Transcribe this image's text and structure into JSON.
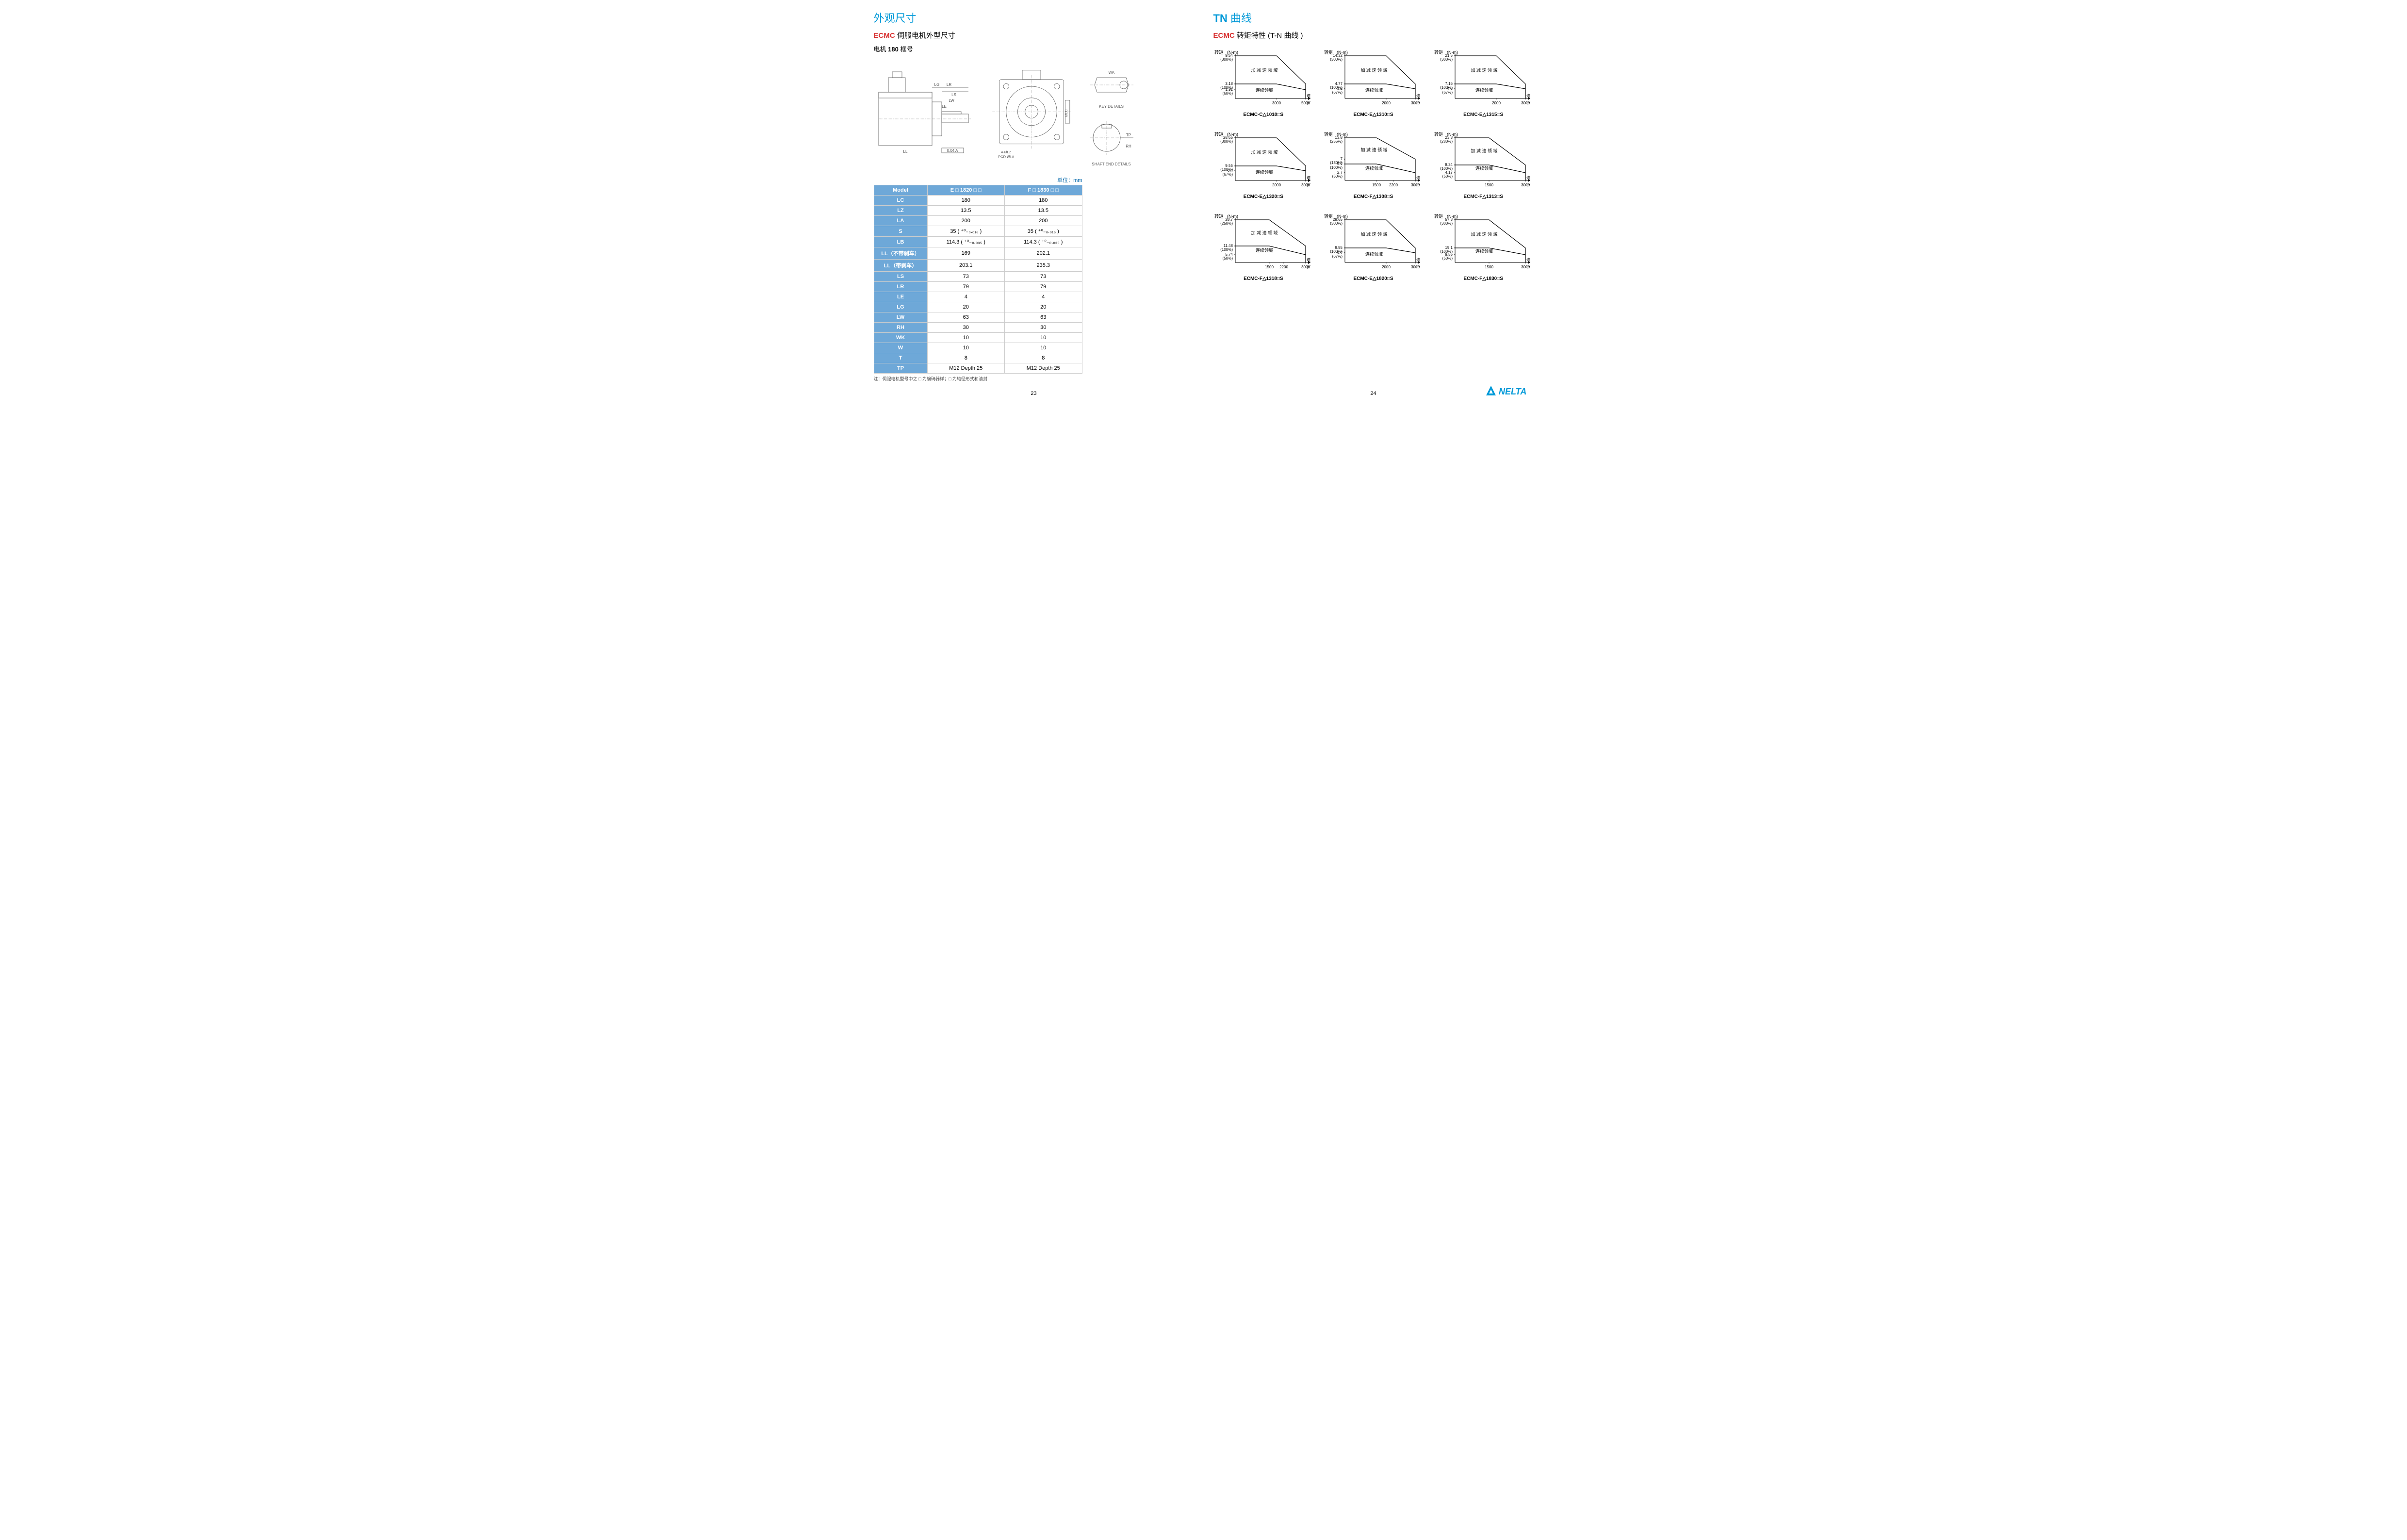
{
  "left": {
    "title_blue": "外观尺寸",
    "subtitle_red_prefix": "ECMC",
    "subtitle_red_rest": " 伺服电机外型尺寸",
    "frame_label_prefix": "电机 ",
    "frame_label_bold": "180",
    "frame_label_suffix": " 框号",
    "drawing_key_details": "KEY DETAILS",
    "drawing_shaft_details": "SHAFT END DETAILS",
    "drawing_callouts": [
      "LG",
      "LR",
      "LS",
      "LW",
      "LE",
      "LL",
      "4-ØLZ",
      "PCD ØLA",
      "Ø0.04 A",
      "0.04 A",
      "ØLC",
      "RH",
      "TP",
      "T",
      "WK"
    ],
    "unit_label": "单位：mm",
    "table": {
      "headers": [
        "Model",
        "E □ 1820 □ □",
        "F □ 1830 □ □"
      ],
      "rows": [
        [
          "LC",
          "180",
          "180"
        ],
        [
          "LZ",
          "13.5",
          "13.5"
        ],
        [
          "LA",
          "200",
          "200"
        ],
        [
          "S",
          "35 ( ⁺⁰₋₀.₀₁₆ )",
          "35 ( ⁺⁰₋₀.₀₁₆ )"
        ],
        [
          "LB",
          "114.3 ( ⁺⁰₋₀.₀₃₅ )",
          "114.3 ( ⁺⁰₋₀.₀₃₅ )"
        ],
        [
          "LL（不带刹车）",
          "169",
          "202.1"
        ],
        [
          "LL（带刹车）",
          "203.1",
          "235.3"
        ],
        [
          "LS",
          "73",
          "73"
        ],
        [
          "LR",
          "79",
          "79"
        ],
        [
          "LE",
          "4",
          "4"
        ],
        [
          "LG",
          "20",
          "20"
        ],
        [
          "LW",
          "63",
          "63"
        ],
        [
          "RH",
          "30",
          "30"
        ],
        [
          "WK",
          "10",
          "10"
        ],
        [
          "W",
          "10",
          "10"
        ],
        [
          "T",
          "8",
          "8"
        ],
        [
          "TP",
          "M12 Depth 25",
          "M12 Depth 25"
        ]
      ]
    },
    "footnote": "注：伺服电机型号中之 □ 为编码器样；□ 为轴径形式和油封",
    "page_num": "23"
  },
  "right": {
    "title_blue_bold": "TN",
    "title_blue_rest": " 曲线",
    "subtitle_red_prefix": "ECMC",
    "subtitle_red_rest": " 转矩特性 (T-N 曲线 )",
    "y_axis_label": "转矩",
    "y_axis_unit": "(N-m)",
    "x_axis_label": "速度",
    "x_axis_unit": "(r/min)",
    "region_accel": "加 减 速 领 域",
    "region_cont": "连续领域",
    "chart_stroke": "#000000",
    "chart_fill": "none",
    "charts": [
      {
        "model": "ECMC-C△1010□S",
        "y_ticks": [
          {
            "v": 9.54,
            "pct": "(300%)",
            "y": 12
          },
          {
            "v": 3.18,
            "pct": "(100%)",
            "y": 70
          },
          {
            "v": 1.91,
            "pct": "(60%)",
            "y": 82
          }
        ],
        "x_ticks": [
          {
            "v": 3000,
            "x": 95
          },
          {
            "v": 5000,
            "x": 155
          }
        ],
        "peak_line": [
          [
            10,
            12
          ],
          [
            95,
            12
          ],
          [
            155,
            70
          ],
          [
            155,
            100
          ]
        ],
        "rated_line": [
          [
            10,
            70
          ],
          [
            95,
            70
          ],
          [
            155,
            82
          ]
        ],
        "accel_pos": [
          70,
          45
        ],
        "cont_pos": [
          70,
          86
        ]
      },
      {
        "model": "ECMC-E△1310□S",
        "y_ticks": [
          {
            "v": 14.32,
            "pct": "(300%)",
            "y": 12
          },
          {
            "v": 4.77,
            "pct": "(100%)",
            "y": 70
          },
          {
            "v": 3.2,
            "pct": "(67%)",
            "y": 80
          }
        ],
        "x_ticks": [
          {
            "v": 2000,
            "x": 95
          },
          {
            "v": 3000,
            "x": 155
          }
        ],
        "peak_line": [
          [
            10,
            12
          ],
          [
            95,
            12
          ],
          [
            155,
            70
          ],
          [
            155,
            100
          ]
        ],
        "rated_line": [
          [
            10,
            70
          ],
          [
            95,
            70
          ],
          [
            155,
            80
          ]
        ],
        "accel_pos": [
          70,
          45
        ],
        "cont_pos": [
          70,
          86
        ]
      },
      {
        "model": "ECMC-E△1315□S",
        "y_ticks": [
          {
            "v": 21.5,
            "pct": "(300%)",
            "y": 12
          },
          {
            "v": 7.16,
            "pct": "(100%)",
            "y": 70
          },
          {
            "v": 4.8,
            "pct": "(67%)",
            "y": 80
          }
        ],
        "x_ticks": [
          {
            "v": 2000,
            "x": 95
          },
          {
            "v": 3000,
            "x": 155
          }
        ],
        "peak_line": [
          [
            10,
            12
          ],
          [
            95,
            12
          ],
          [
            155,
            70
          ],
          [
            155,
            100
          ]
        ],
        "rated_line": [
          [
            10,
            70
          ],
          [
            95,
            70
          ],
          [
            155,
            80
          ]
        ],
        "accel_pos": [
          70,
          45
        ],
        "cont_pos": [
          70,
          86
        ]
      },
      {
        "model": "ECMC-E△1320□S",
        "y_ticks": [
          {
            "v": 28.65,
            "pct": "(300%)",
            "y": 12
          },
          {
            "v": 9.55,
            "pct": "(100%)",
            "y": 70
          },
          {
            "v": 6.4,
            "pct": "(67%)",
            "y": 80
          }
        ],
        "x_ticks": [
          {
            "v": 2000,
            "x": 95
          },
          {
            "v": 3000,
            "x": 155
          }
        ],
        "peak_line": [
          [
            10,
            12
          ],
          [
            95,
            12
          ],
          [
            155,
            70
          ],
          [
            155,
            100
          ]
        ],
        "rated_line": [
          [
            10,
            70
          ],
          [
            95,
            70
          ],
          [
            155,
            80
          ]
        ],
        "accel_pos": [
          70,
          45
        ],
        "cont_pos": [
          70,
          86
        ]
      },
      {
        "model": "ECMC-F△1308□S",
        "y_ticks": [
          {
            "v": 13.8,
            "pct": "(255%)",
            "y": 12
          },
          {
            "v": 7,
            "pct": "(130%)",
            "y": 56
          },
          {
            "v": 5.4,
            "pct": "(100%)",
            "y": 66
          },
          {
            "v": 2.7,
            "pct": "(50%)",
            "y": 84
          }
        ],
        "x_ticks": [
          {
            "v": 1500,
            "x": 75
          },
          {
            "v": 2200,
            "x": 110
          },
          {
            "v": 3000,
            "x": 155
          }
        ],
        "peak_line": [
          [
            10,
            12
          ],
          [
            75,
            12
          ],
          [
            155,
            56
          ],
          [
            155,
            100
          ]
        ],
        "rated_line": [
          [
            10,
            66
          ],
          [
            75,
            66
          ],
          [
            155,
            84
          ]
        ],
        "accel_pos": [
          70,
          40
        ],
        "cont_pos": [
          70,
          78
        ]
      },
      {
        "model": "ECMC-F△1313□S",
        "y_ticks": [
          {
            "v": 23.3,
            "pct": "(280%)",
            "y": 12
          },
          {
            "v": 8.34,
            "pct": "(100%)",
            "y": 68
          },
          {
            "v": 4.17,
            "pct": "(50%)",
            "y": 84
          }
        ],
        "x_ticks": [
          {
            "v": 1500,
            "x": 80
          },
          {
            "v": 3000,
            "x": 155
          }
        ],
        "peak_line": [
          [
            10,
            12
          ],
          [
            80,
            12
          ],
          [
            155,
            68
          ],
          [
            155,
            100
          ]
        ],
        "rated_line": [
          [
            10,
            68
          ],
          [
            80,
            68
          ],
          [
            155,
            84
          ]
        ],
        "accel_pos": [
          70,
          42
        ],
        "cont_pos": [
          70,
          78
        ]
      },
      {
        "model": "ECMC-F△1318□S",
        "y_ticks": [
          {
            "v": 28.7,
            "pct": "(250%)",
            "y": 12
          },
          {
            "v": 11.48,
            "pct": "(100%)",
            "y": 66
          },
          {
            "v": 5.74,
            "pct": "(50%)",
            "y": 84
          }
        ],
        "x_ticks": [
          {
            "v": 1500,
            "x": 80
          },
          {
            "v": 2200,
            "x": 110
          },
          {
            "v": 3000,
            "x": 155
          }
        ],
        "peak_line": [
          [
            10,
            12
          ],
          [
            80,
            12
          ],
          [
            155,
            66
          ],
          [
            155,
            100
          ]
        ],
        "rated_line": [
          [
            10,
            66
          ],
          [
            80,
            66
          ],
          [
            155,
            84
          ]
        ],
        "accel_pos": [
          70,
          42
        ],
        "cont_pos": [
          70,
          78
        ]
      },
      {
        "model": "ECMC-E△1820□S",
        "y_ticks": [
          {
            "v": 28.65,
            "pct": "(300%)",
            "y": 12
          },
          {
            "v": 9.55,
            "pct": "(100%)",
            "y": 70
          },
          {
            "v": 6.4,
            "pct": "(67%)",
            "y": 80
          }
        ],
        "x_ticks": [
          {
            "v": 2000,
            "x": 95
          },
          {
            "v": 3000,
            "x": 155
          }
        ],
        "peak_line": [
          [
            10,
            12
          ],
          [
            95,
            12
          ],
          [
            155,
            70
          ],
          [
            155,
            100
          ]
        ],
        "rated_line": [
          [
            10,
            70
          ],
          [
            95,
            70
          ],
          [
            155,
            80
          ]
        ],
        "accel_pos": [
          70,
          45
        ],
        "cont_pos": [
          70,
          86
        ]
      },
      {
        "model": "ECMC-F△1830□S",
        "y_ticks": [
          {
            "v": 57.3,
            "pct": "(300%)",
            "y": 12
          },
          {
            "v": 19.1,
            "pct": "(100%)",
            "y": 70
          },
          {
            "v": 9.55,
            "pct": "(50%)",
            "y": 84
          }
        ],
        "x_ticks": [
          {
            "v": 1500,
            "x": 80
          },
          {
            "v": 3000,
            "x": 155
          }
        ],
        "peak_line": [
          [
            10,
            12
          ],
          [
            80,
            12
          ],
          [
            155,
            70
          ],
          [
            155,
            100
          ]
        ],
        "rated_line": [
          [
            10,
            70
          ],
          [
            80,
            70
          ],
          [
            155,
            84
          ]
        ],
        "accel_pos": [
          70,
          45
        ],
        "cont_pos": [
          70,
          80
        ]
      }
    ],
    "page_num": "24",
    "logo_text": "NELTA",
    "logo_color": "#0099d8"
  }
}
